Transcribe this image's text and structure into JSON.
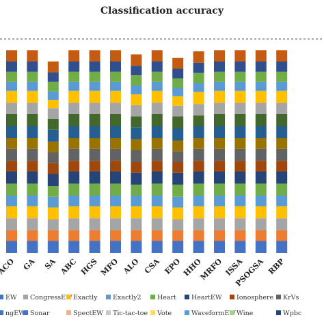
{
  "chart_data": {
    "type": "bar",
    "stacked": true,
    "title": "Classification accuracy",
    "categories": [
      "ACO",
      "GA",
      "SA",
      "ABC",
      "HGS",
      "MFO",
      "ALO",
      "CSA",
      "EPO",
      "HHO",
      "MRFO",
      "ISSA",
      "PSOGSA",
      "RBP"
    ],
    "grid": false,
    "legend_position": "bottom",
    "series": [
      {
        "name": "",
        "color": "#4472C4",
        "values": [
          1.0,
          1.0,
          1.0,
          1.0,
          1.0,
          1.0,
          1.0,
          1.0,
          1.0,
          1.0,
          1.0,
          1.0,
          1.0,
          1.0
        ]
      },
      {
        "name": "",
        "color": "#ED7D31",
        "values": [
          0.9,
          0.9,
          0.9,
          0.9,
          0.9,
          0.9,
          0.9,
          0.9,
          0.9,
          0.9,
          0.9,
          0.9,
          0.9,
          0.9
        ]
      },
      {
        "name": "",
        "color": "#A5A5A5",
        "values": [
          1.0,
          1.0,
          0.9,
          1.0,
          1.0,
          1.0,
          1.0,
          1.0,
          0.9,
          1.0,
          1.0,
          1.0,
          1.0,
          1.0
        ]
      },
      {
        "name": "",
        "color": "#FFC000",
        "values": [
          1.0,
          1.0,
          1.0,
          1.0,
          1.0,
          1.0,
          1.0,
          1.0,
          1.0,
          1.0,
          1.0,
          1.0,
          1.0,
          1.0
        ]
      },
      {
        "name": "",
        "color": "#5B9BD5",
        "values": [
          0.9,
          0.9,
          0.9,
          0.9,
          0.9,
          0.9,
          0.9,
          0.9,
          0.9,
          0.9,
          0.9,
          0.9,
          0.9,
          0.9
        ]
      },
      {
        "name": "",
        "color": "#70AD47",
        "values": [
          1.0,
          1.0,
          0.9,
          1.0,
          1.0,
          1.0,
          0.9,
          1.0,
          1.0,
          1.0,
          1.0,
          1.0,
          1.0,
          1.0
        ]
      },
      {
        "name": "",
        "color": "#264478",
        "values": [
          1.0,
          1.0,
          1.0,
          1.0,
          1.0,
          1.0,
          1.0,
          1.0,
          1.0,
          1.0,
          1.0,
          1.0,
          1.0,
          1.0
        ]
      },
      {
        "name": "",
        "color": "#9E480E",
        "values": [
          0.9,
          0.9,
          0.9,
          0.9,
          0.9,
          0.9,
          0.9,
          0.9,
          0.9,
          0.9,
          0.9,
          0.9,
          0.9,
          0.9
        ]
      },
      {
        "name": "",
        "color": "#636363",
        "values": [
          1.0,
          1.0,
          0.9,
          1.0,
          1.0,
          1.0,
          1.0,
          1.0,
          0.9,
          1.0,
          1.0,
          1.0,
          1.0,
          1.0
        ]
      },
      {
        "name": "",
        "color": "#997300",
        "values": [
          0.9,
          0.9,
          0.9,
          0.9,
          0.9,
          0.9,
          0.9,
          0.9,
          0.9,
          0.9,
          0.9,
          0.9,
          0.9,
          0.9
        ]
      },
      {
        "name": "",
        "color": "#255E91",
        "values": [
          1.0,
          1.0,
          1.0,
          1.0,
          1.0,
          1.0,
          1.0,
          1.0,
          1.0,
          1.0,
          1.0,
          1.0,
          1.0,
          1.0
        ]
      },
      {
        "name": "",
        "color": "#43682B",
        "values": [
          1.0,
          1.0,
          0.9,
          1.0,
          1.0,
          1.0,
          0.9,
          1.0,
          1.0,
          0.9,
          1.0,
          1.0,
          1.0,
          1.0
        ]
      },
      {
        "name": "CongressEW",
        "color": "#A5A5A5",
        "values": [
          0.95,
          0.95,
          0.9,
          0.95,
          0.95,
          0.95,
          0.95,
          0.95,
          0.9,
          0.95,
          0.95,
          0.95,
          0.95,
          0.95
        ]
      },
      {
        "name": "Exactly",
        "color": "#FFC000",
        "values": [
          1.0,
          1.0,
          0.7,
          1.0,
          1.0,
          1.0,
          0.9,
          1.0,
          0.8,
          1.0,
          1.0,
          1.0,
          1.0,
          1.0
        ]
      },
      {
        "name": "Exactly2",
        "color": "#5B9BD5",
        "values": [
          0.75,
          0.75,
          0.7,
          0.75,
          0.75,
          0.75,
          0.75,
          0.75,
          0.7,
          0.75,
          0.75,
          0.75,
          0.75,
          0.75
        ]
      },
      {
        "name": "Heart",
        "color": "#70AD47",
        "values": [
          0.85,
          0.85,
          0.8,
          0.85,
          0.85,
          0.85,
          0.85,
          0.85,
          0.8,
          0.85,
          0.85,
          0.85,
          0.85,
          0.85
        ]
      },
      {
        "name": "HeartEW",
        "color": "#2F4F8F",
        "values": [
          0.85,
          0.85,
          0.8,
          0.85,
          0.85,
          0.85,
          0.8,
          0.85,
          0.8,
          0.85,
          0.85,
          0.85,
          0.85,
          0.85
        ]
      },
      {
        "name": "Ionosphere",
        "color": "#C55A11",
        "values": [
          0.95,
          0.95,
          0.9,
          0.95,
          0.95,
          0.95,
          0.95,
          0.95,
          0.9,
          0.95,
          0.95,
          0.95,
          0.95,
          0.95
        ]
      }
    ],
    "legend_rows": [
      [
        {
          "name": "EW",
          "color": "#4472C4"
        },
        {
          "name": "CongressEW",
          "color": "#A5A5A5"
        },
        {
          "name": "Exactly",
          "color": "#FFC000"
        },
        {
          "name": "Exactly2",
          "color": "#5B9BD5"
        },
        {
          "name": "Heart",
          "color": "#70AD47"
        },
        {
          "name": "HeartEW",
          "color": "#264478"
        },
        {
          "name": "Ionosphere",
          "color": "#9E480E"
        },
        {
          "name": "KrVs",
          "color": "#636363"
        }
      ],
      [
        {
          "name": "ngEW",
          "color": "#4472C4"
        },
        {
          "name": "Sonar",
          "color": "#4472C4"
        },
        {
          "name": "SpectEW",
          "color": "#F4B183"
        },
        {
          "name": "Tic-tac-toe",
          "color": "#C9C9C9"
        },
        {
          "name": "Vote",
          "color": "#FFD966"
        },
        {
          "name": "WaveformEW",
          "color": "#5B9BD5"
        },
        {
          "name": "Wine",
          "color": "#A9D18E"
        },
        {
          "name": "Wpbc",
          "color": "#264478"
        }
      ]
    ]
  }
}
